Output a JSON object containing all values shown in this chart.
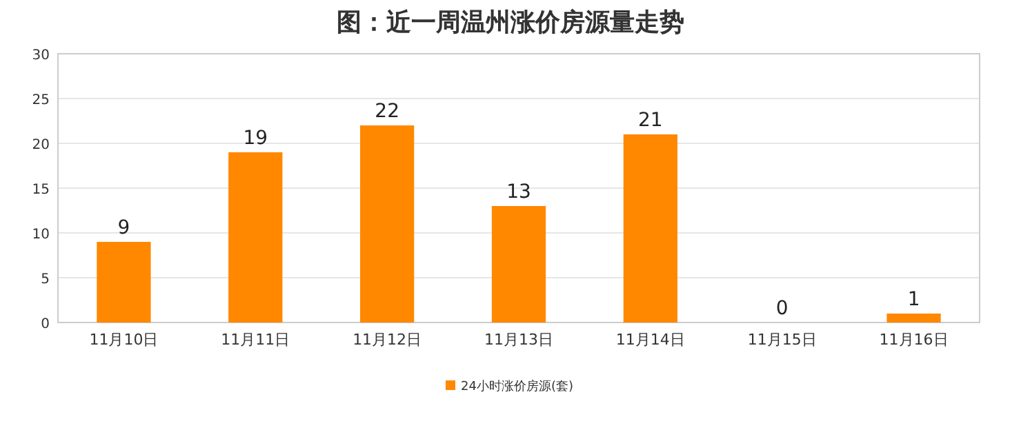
{
  "chart_data": {
    "type": "bar",
    "title": "图：近一周温州涨价房源量走势",
    "categories": [
      "11月10日",
      "11月11日",
      "11月12日",
      "11月13日",
      "11月14日",
      "11月15日",
      "11月16日"
    ],
    "series": [
      {
        "name": "24小时涨价房源(套)",
        "color": "#ff8800",
        "values": [
          9,
          19,
          22,
          13,
          21,
          0,
          1
        ]
      }
    ],
    "ylim": [
      0,
      30
    ],
    "yticks": [
      0,
      5,
      10,
      15,
      20,
      25,
      30
    ],
    "grid": "y",
    "legend": "bottom",
    "data_labels": true
  }
}
